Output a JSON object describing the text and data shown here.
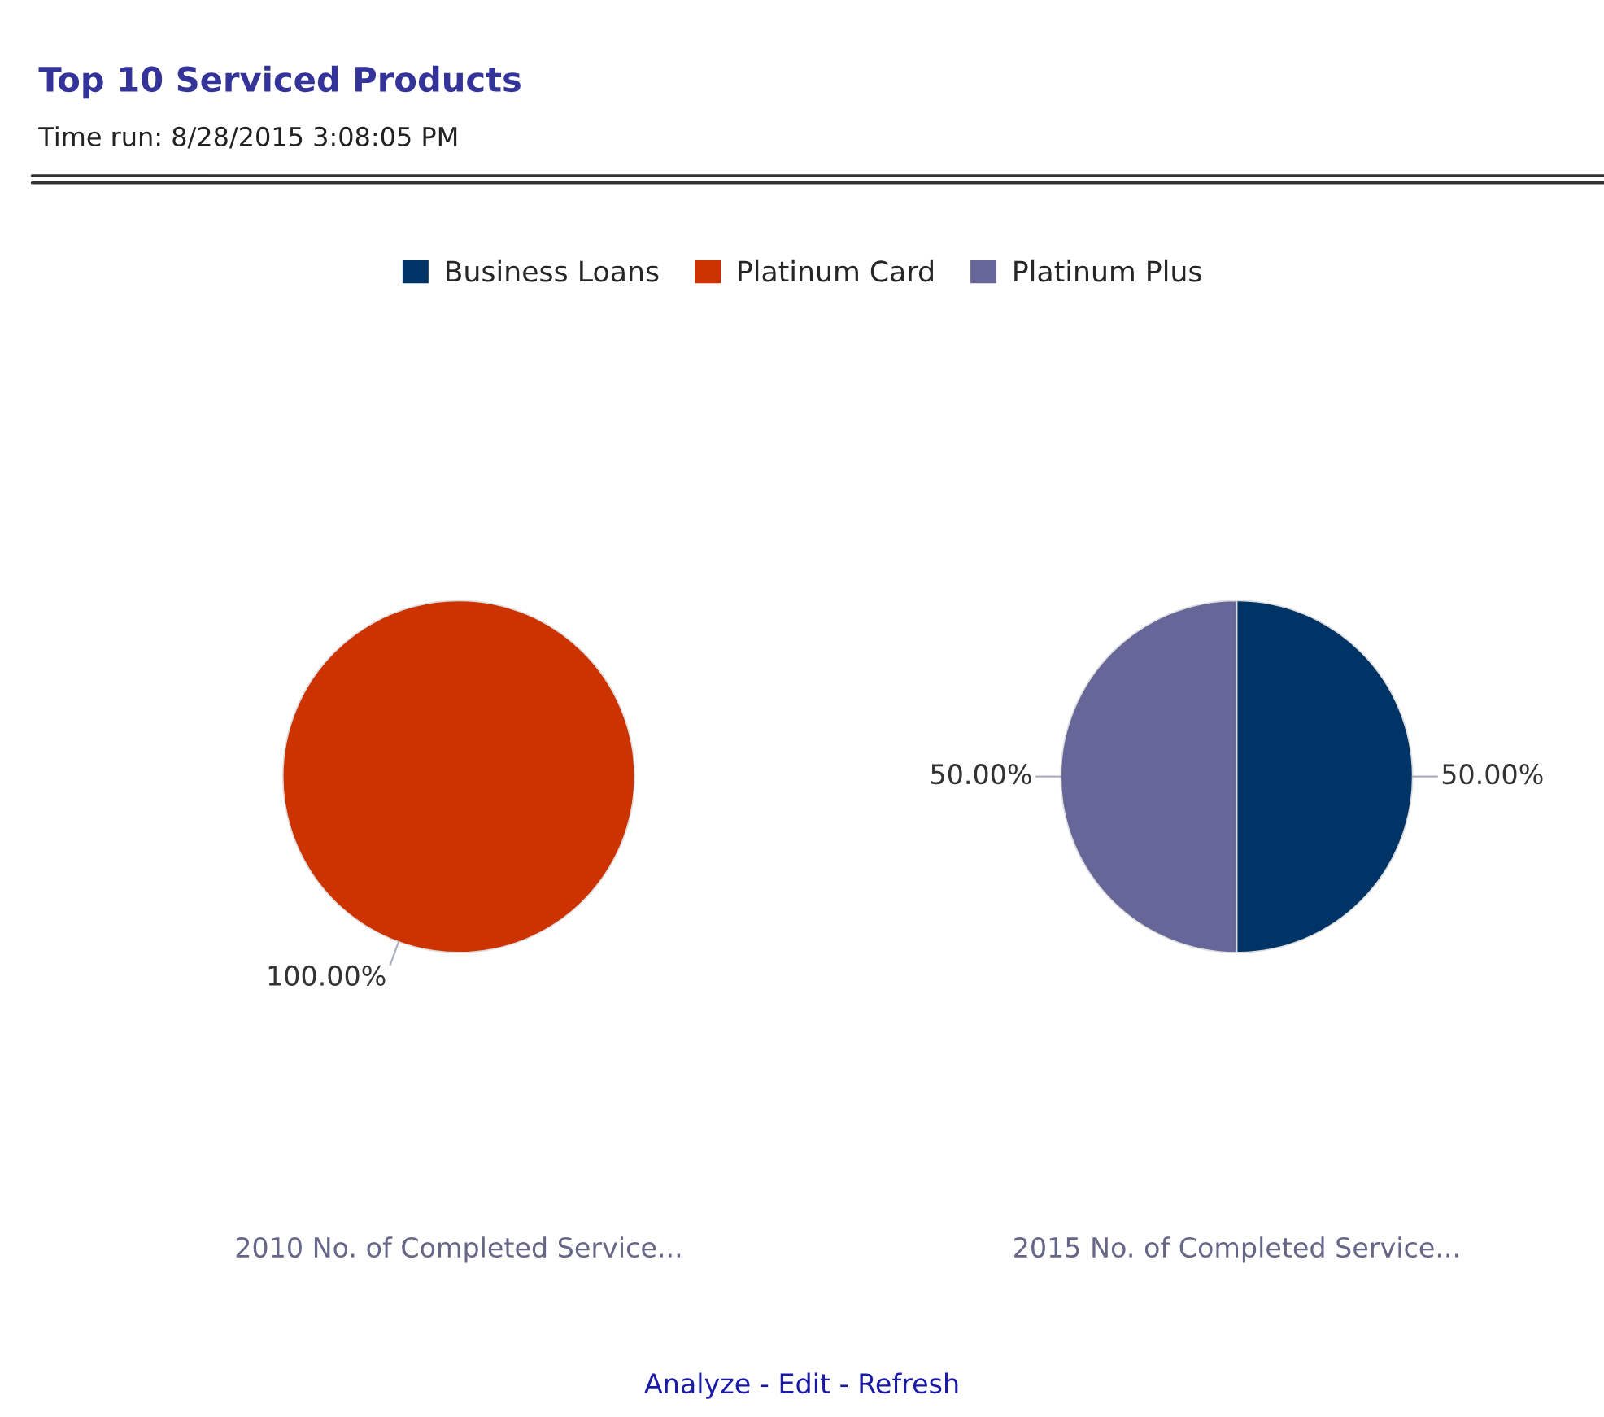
{
  "chart_data": [
    {
      "type": "pie",
      "title": "Top 10 Serviced Products",
      "subtitle": "Time run: 8/28/2015 3:08:05 PM",
      "xlabel": "2010 No. of Completed Service...",
      "categories": [
        "Platinum Card"
      ],
      "values": [
        100
      ],
      "colors": [
        "#cc3300"
      ],
      "value_labels": [
        "100.00%"
      ],
      "legend": "top"
    },
    {
      "type": "pie",
      "xlabel": "2015 No. of Completed Service...",
      "categories": [
        "Business Loans",
        "Platinum Plus"
      ],
      "values": [
        50,
        50
      ],
      "colors": [
        "#003366",
        "#666699"
      ],
      "value_labels": [
        "50.00%",
        "50.00%"
      ],
      "legend": "top",
      "annotations": [
        "Analyze - Edit - Refresh"
      ]
    }
  ]
}
